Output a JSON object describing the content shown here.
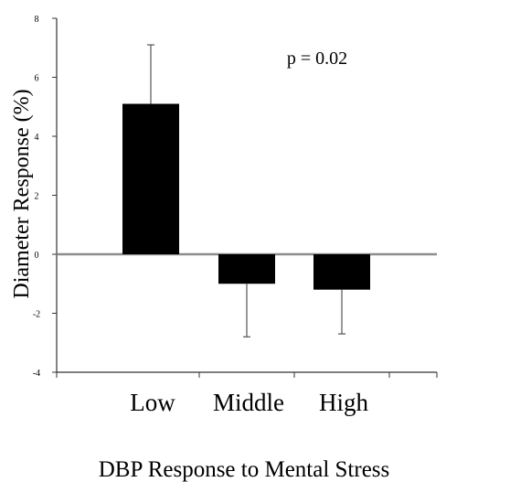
{
  "chart_data": {
    "type": "bar",
    "categories": [
      "Low",
      "Middle",
      "High"
    ],
    "values": [
      5.1,
      -1.0,
      -1.2
    ],
    "error_upper": [
      7.1,
      -1.0,
      -1.2
    ],
    "error_lower": [
      5.1,
      -2.8,
      -2.7
    ],
    "title": "",
    "xlabel": "DBP Response to Mental Stress",
    "ylabel": "Diameter Response (%)",
    "ylim": [
      -4,
      8
    ],
    "yticks": [
      "8",
      "6",
      "4",
      "2",
      "0",
      "-2",
      "-4"
    ],
    "annotation": "p = 0.02",
    "grid": false,
    "bar_color": "#000000",
    "zero_line_color": "#8c8c8c"
  }
}
